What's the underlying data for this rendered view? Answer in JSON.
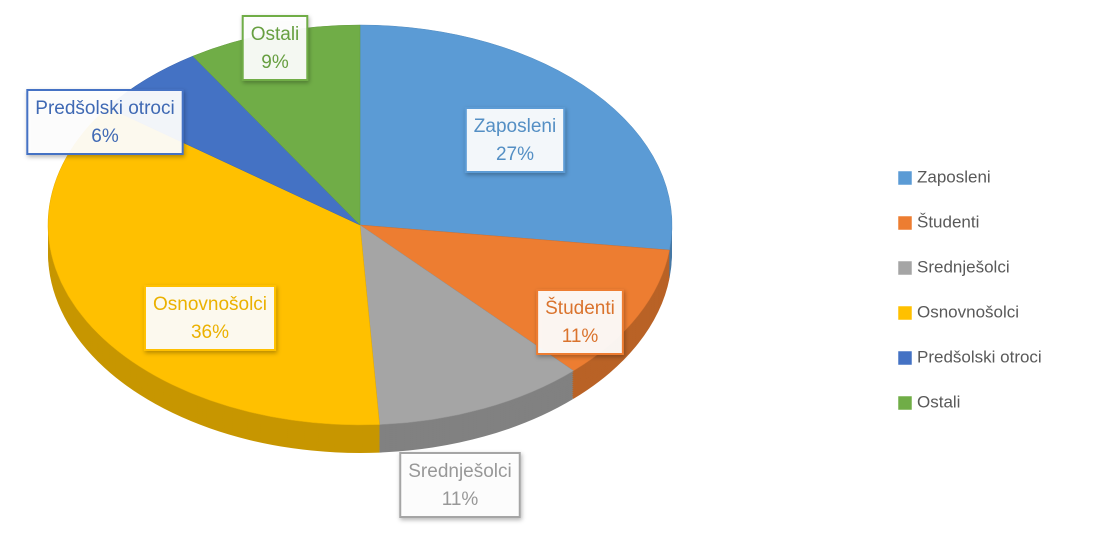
{
  "chart_data": {
    "type": "pie",
    "categories": [
      "Zaposleni",
      "Študenti",
      "Srednješolci",
      "Osnovnošolci",
      "Predšolski otroci",
      "Ostali"
    ],
    "values": [
      27,
      11,
      11,
      36,
      6,
      9
    ],
    "value_labels": [
      "27%",
      "11%",
      "11%",
      "36%",
      "6%",
      "9%"
    ],
    "colors": [
      "#5b9bd5",
      "#ed7d31",
      "#a5a5a5",
      "#ffc000",
      "#4472c4",
      "#70ad47"
    ],
    "legend": "right"
  }
}
